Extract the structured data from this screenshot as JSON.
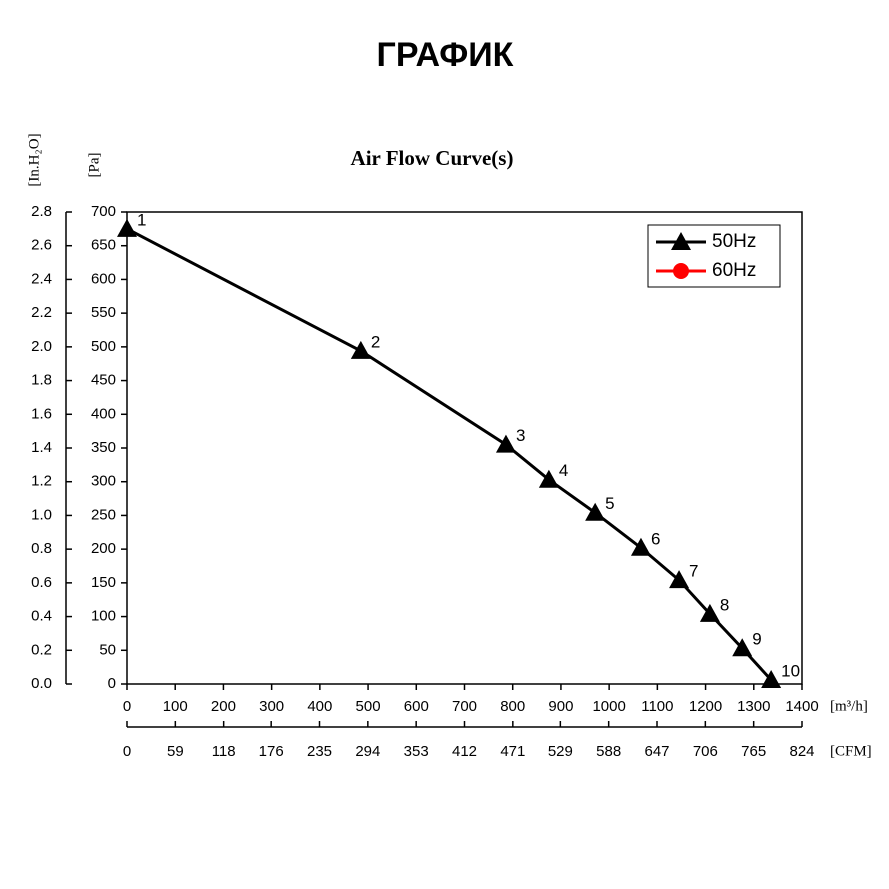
{
  "page_title": "ГРАФИК",
  "chart_data": {
    "type": "line",
    "title": "Air Flow Curve(s)",
    "x_label": "[m³/h]",
    "y_label": "[Pa]",
    "y2_label": "[In.H₂O]",
    "x2_label": "[CFM]",
    "x": [
      0,
      485,
      786,
      875,
      971,
      1066,
      1145,
      1209,
      1276,
      1336
    ],
    "point_labels": [
      "1",
      "2",
      "3",
      "4",
      "5",
      "6",
      "7",
      "8",
      "9",
      "10"
    ],
    "series": [
      {
        "name": "50Hz",
        "color": "#000000",
        "marker": "triangle",
        "values": [
          675,
          494,
          355,
          303,
          254,
          202,
          154,
          104,
          53,
          6
        ]
      },
      {
        "name": "60Hz",
        "color": "#ff0000",
        "marker": "circle",
        "values": [
          null,
          null,
          null,
          null,
          null,
          null,
          null,
          null,
          null,
          null
        ]
      }
    ],
    "xlim": [
      0,
      1400
    ],
    "xticks": [
      0,
      100,
      200,
      300,
      400,
      500,
      600,
      700,
      800,
      900,
      1000,
      1100,
      1200,
      1300,
      1400
    ],
    "x2lim": [
      0,
      824
    ],
    "x2ticks": [
      0,
      59,
      118,
      176,
      235,
      294,
      353,
      412,
      471,
      529,
      588,
      647,
      706,
      765,
      824
    ],
    "ylim": [
      0,
      700
    ],
    "yticks": [
      0,
      50,
      100,
      150,
      200,
      250,
      300,
      350,
      400,
      450,
      500,
      550,
      600,
      650,
      700
    ],
    "y2lim": [
      0,
      2.8
    ],
    "y2ticks": [
      {
        "value": 0,
        "label": "0.0"
      },
      0.2,
      0.4,
      0.6,
      0.8,
      {
        "value": 1,
        "label": "1.0"
      },
      1.2,
      1.4,
      1.6,
      1.8,
      {
        "value": 2,
        "label": "2.0"
      },
      2.2,
      2.4,
      2.6,
      2.8
    ],
    "legend": "upper right"
  }
}
